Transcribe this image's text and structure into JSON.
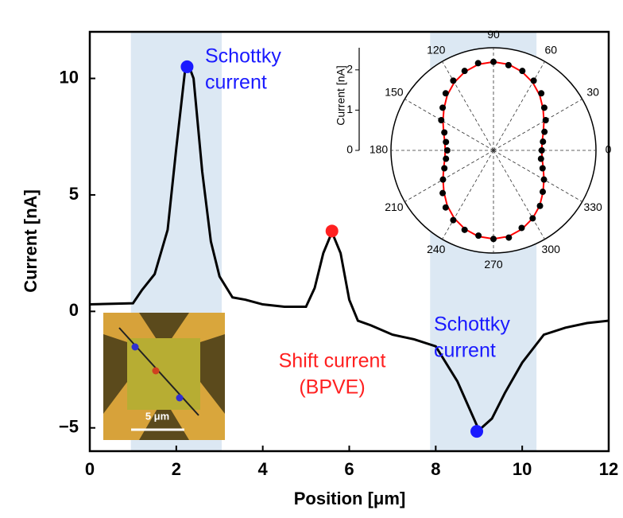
{
  "chart_data": [
    {
      "type": "line",
      "xlabel": "Position [μm]",
      "ylabel": "Current [nA]",
      "x": [
        0,
        1,
        1.2,
        1.5,
        1.8,
        2.0,
        2.2,
        2.3,
        2.4,
        2.6,
        2.8,
        3.0,
        3.3,
        3.6,
        4.0,
        4.5,
        5.0,
        5.2,
        5.4,
        5.6,
        5.8,
        6.0,
        6.2,
        6.5,
        7.0,
        7.5,
        8.0,
        8.5,
        9.0,
        9.3,
        9.6,
        10.0,
        10.5,
        11.0,
        11.5,
        12.0
      ],
      "values": [
        0.3,
        0.35,
        0.9,
        1.6,
        3.5,
        7,
        10.3,
        10.5,
        10,
        6,
        3,
        1.5,
        0.6,
        0.5,
        0.3,
        0.2,
        0.2,
        1,
        2.5,
        3.4,
        2.5,
        0.5,
        -0.4,
        -0.6,
        -1.0,
        -1.2,
        -1.5,
        -3,
        -5.1,
        -4.6,
        -3.5,
        -2.2,
        -1.0,
        -0.7,
        -0.5,
        -0.4
      ],
      "color": "#000000",
      "xlim": [
        0,
        12
      ],
      "ylim": [
        -6,
        12
      ],
      "xticks": [
        0,
        2,
        4,
        6,
        8,
        10,
        12
      ],
      "yticks": [
        {
          "value": -5,
          "label": "−5"
        },
        0,
        5,
        10
      ],
      "shaded_spans": [
        [
          0.95,
          3.05
        ],
        [
          7.87,
          10.33
        ]
      ],
      "shade_color": "#dce8f3",
      "highlights": [
        {
          "x": 2.25,
          "y": 10.5,
          "color": "#1a1aff"
        },
        {
          "x": 5.6,
          "y": 3.45,
          "color": "#ff2020"
        },
        {
          "x": 8.95,
          "y": -5.15,
          "color": "#1a1aff"
        }
      ],
      "annotations": [
        {
          "lines": [
            "Schottky",
            "current"
          ],
          "color": "#1a1aff"
        },
        {
          "lines": [
            "Shift current",
            "(BPVE)"
          ],
          "color": "#ff2020"
        },
        {
          "lines": [
            "Schottky",
            "current"
          ],
          "color": "#1a1aff"
        }
      ]
    },
    {
      "type": "polar",
      "ylabel": "Current [nA]",
      "theta": [
        0,
        10,
        20,
        30,
        40,
        50,
        60,
        70,
        80,
        90,
        100,
        110,
        120,
        130,
        140,
        150,
        160,
        170,
        180,
        190,
        200,
        210,
        220,
        230,
        240,
        250,
        260,
        270,
        280,
        290,
        300,
        310,
        320,
        330,
        340,
        350
      ],
      "measured": {
        "color": "#000000",
        "values": [
          1.2,
          1.25,
          1.35,
          1.5,
          1.65,
          1.85,
          2.0,
          2.1,
          2.15,
          2.2,
          2.2,
          2.1,
          2.0,
          1.85,
          1.65,
          1.5,
          1.3,
          1.2,
          1.15,
          1.2,
          1.3,
          1.45,
          1.65,
          1.85,
          2.0,
          2.1,
          2.15,
          2.2,
          2.2,
          2.05,
          1.95,
          1.8,
          1.6,
          1.45,
          1.3,
          1.2
        ]
      },
      "fit": {
        "color": "#ff0000",
        "values": [
          1.2,
          1.23,
          1.32,
          1.45,
          1.61,
          1.79,
          1.95,
          2.08,
          2.17,
          2.2,
          2.17,
          2.08,
          1.95,
          1.79,
          1.61,
          1.45,
          1.32,
          1.23,
          1.2,
          1.23,
          1.32,
          1.45,
          1.61,
          1.79,
          1.95,
          2.08,
          2.17,
          2.2,
          2.17,
          2.08,
          1.95,
          1.79,
          1.61,
          1.45,
          1.32,
          1.23
        ]
      },
      "rlim": [
        0,
        2.55
      ],
      "rticks": [
        0,
        1,
        2
      ],
      "angle_ticks": [
        0,
        30,
        60,
        90,
        120,
        150,
        180,
        210,
        240,
        270,
        300,
        330
      ]
    }
  ],
  "image_inset": {
    "scale_label": "5 μm"
  }
}
